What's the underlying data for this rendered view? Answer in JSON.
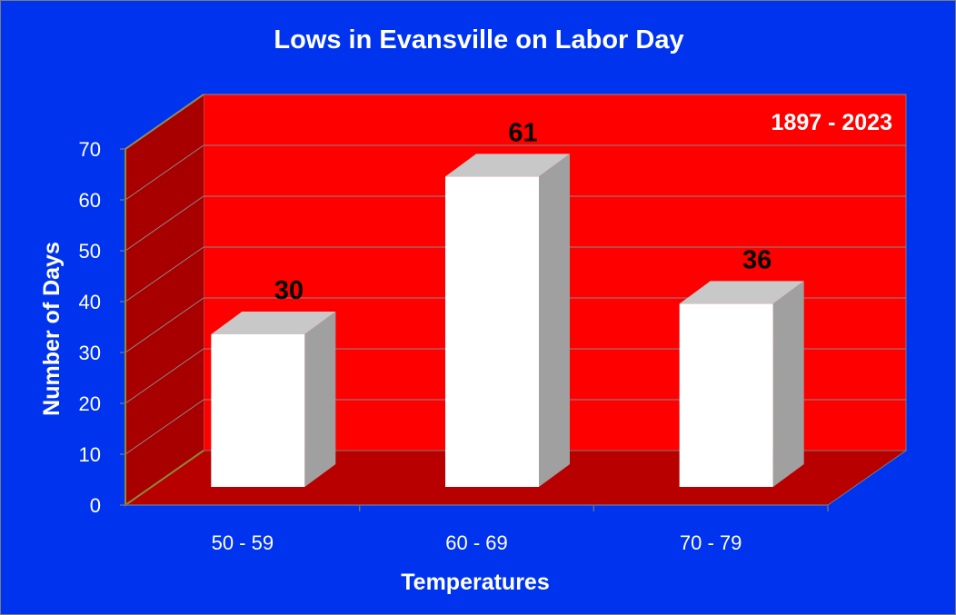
{
  "chart_data": {
    "type": "bar",
    "title": "Lows in Evansville on Labor Day",
    "annotation": "1897 - 2023",
    "categories": [
      "50 - 59",
      "60 - 69",
      "70 - 79"
    ],
    "series": [
      {
        "values": [
          30,
          61,
          36
        ]
      }
    ],
    "data_labels": [
      "30",
      "61",
      "36"
    ],
    "xlabel": "Temperatures",
    "ylabel": "Number of Days",
    "ylim": [
      0,
      70
    ],
    "yticks": [
      "0",
      "10",
      "20",
      "30",
      "40",
      "50",
      "60",
      "70"
    ],
    "grid": true,
    "three_d": true,
    "colors": {
      "background": "#0033ee",
      "back_wall": "#ff0000",
      "side_wall": "#a80000",
      "floor": "#b80000",
      "bar_front": "#ffffff",
      "bar_top": "#c8c8c8",
      "bar_side": "#a0a0a0",
      "text": "#ffffff",
      "data_label": "#000000"
    }
  }
}
